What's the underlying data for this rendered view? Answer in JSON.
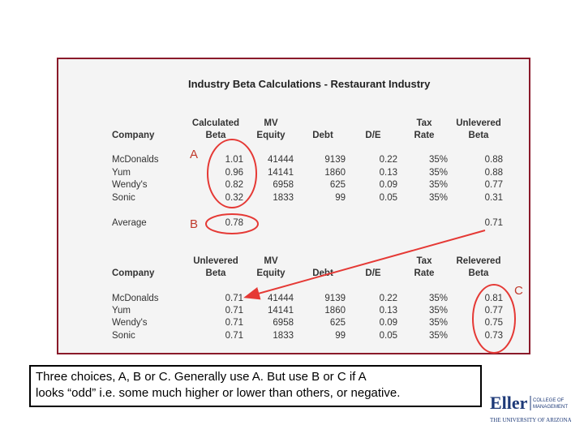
{
  "title": "Industry Beta Calculations - Restaurant Industry",
  "table1": {
    "headers": {
      "company": "Company",
      "beta_l1": "Calculated",
      "beta_l2": "Beta",
      "mv_l1": "MV",
      "mv_l2": "Equity",
      "debt": "Debt",
      "de": "D/E",
      "tax_l1": "Tax",
      "tax_l2": "Rate",
      "unlev_l1": "Unlevered",
      "unlev_l2": "Beta"
    },
    "rows": [
      {
        "company": "McDonalds",
        "beta": "1.01",
        "mv": "41444",
        "debt": "9139",
        "de": "0.22",
        "tax": "35%",
        "result": "0.88"
      },
      {
        "company": "Yum",
        "beta": "0.96",
        "mv": "14141",
        "debt": "1860",
        "de": "0.13",
        "tax": "35%",
        "result": "0.88"
      },
      {
        "company": "Wendy's",
        "beta": "0.82",
        "mv": "6958",
        "debt": "625",
        "de": "0.09",
        "tax": "35%",
        "result": "0.77"
      },
      {
        "company": "Sonic",
        "beta": "0.32",
        "mv": "1833",
        "debt": "99",
        "de": "0.05",
        "tax": "35%",
        "result": "0.31"
      }
    ],
    "average": {
      "label": "Average",
      "beta": "0.78",
      "result": "0.71"
    }
  },
  "table2": {
    "headers": {
      "company": "Company",
      "beta_l1": "Unlevered",
      "beta_l2": "Beta",
      "mv_l1": "MV",
      "mv_l2": "Equity",
      "debt": "Debt",
      "de": "D/E",
      "tax_l1": "Tax",
      "tax_l2": "Rate",
      "relev_l1": "Relevered",
      "relev_l2": "Beta"
    },
    "rows": [
      {
        "company": "McDonalds",
        "beta": "0.71",
        "mv": "41444",
        "debt": "9139",
        "de": "0.22",
        "tax": "35%",
        "result": "0.81"
      },
      {
        "company": "Yum",
        "beta": "0.71",
        "mv": "14141",
        "debt": "1860",
        "de": "0.13",
        "tax": "35%",
        "result": "0.77"
      },
      {
        "company": "Wendy's",
        "beta": "0.71",
        "mv": "6958",
        "debt": "625",
        "de": "0.09",
        "tax": "35%",
        "result": "0.75"
      },
      {
        "company": "Sonic",
        "beta": "0.71",
        "mv": "1833",
        "debt": "99",
        "de": "0.05",
        "tax": "35%",
        "result": "0.73"
      }
    ]
  },
  "markers": {
    "a": "A",
    "b": "B",
    "c": "C"
  },
  "caption": {
    "line1": "Three choices, A, B or C.  Generally use A. But use B or C if A",
    "line2": "looks “odd” i.e. some much higher or lower than others, or negative."
  },
  "logo": {
    "name": "Eller",
    "college_l1": "COLLEGE OF",
    "college_l2": "MANAGEMENT",
    "university": "THE UNIVERSITY OF ARIZONA."
  },
  "colors": {
    "frame": "#8a1a2a",
    "annotation": "#e53935",
    "logo_blue": "#1e3a78"
  }
}
